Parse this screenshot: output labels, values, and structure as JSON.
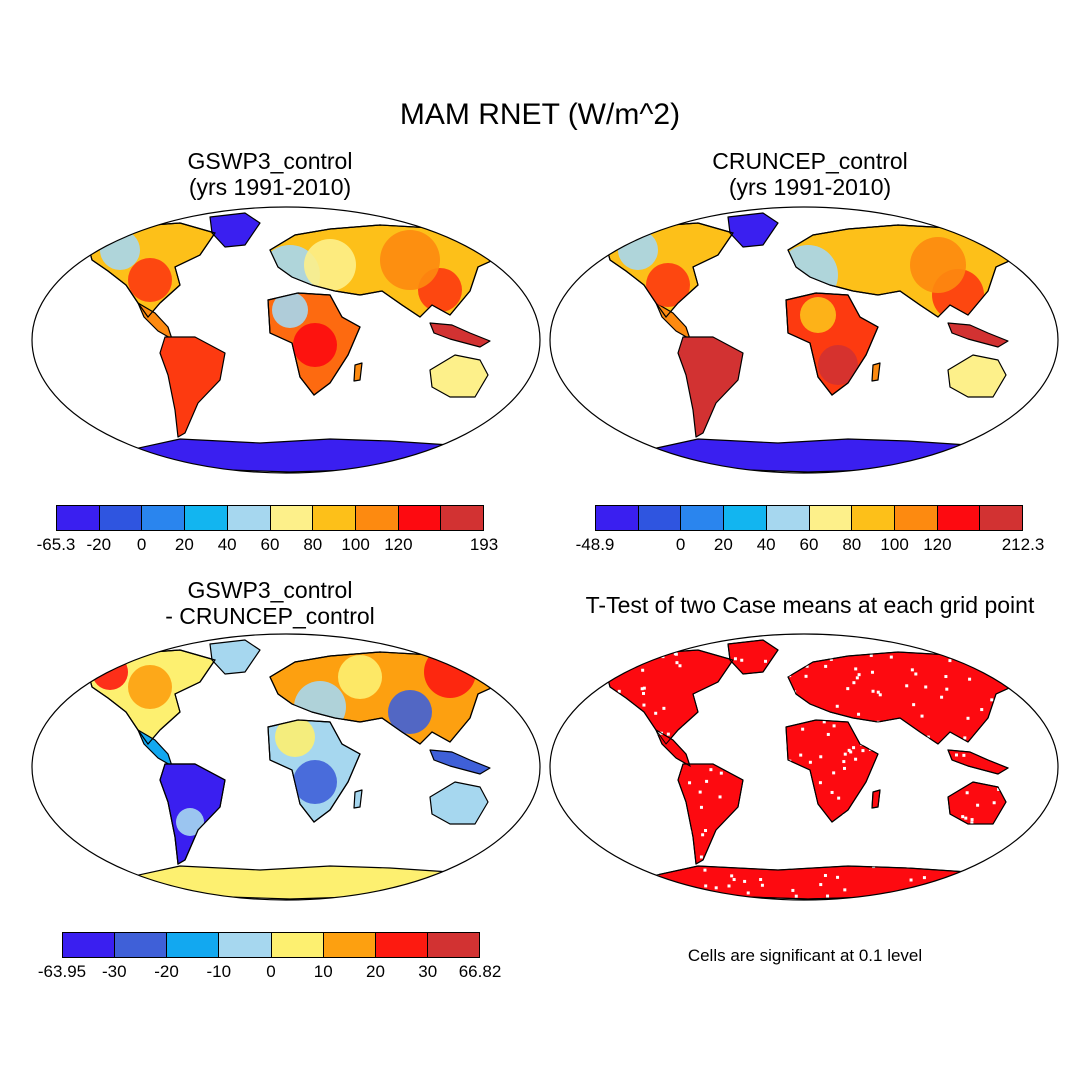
{
  "main_title": "MAM RNET (W/m^2)",
  "panels": [
    {
      "id": "p1",
      "title_line1": "GSWP3_control",
      "title_line2": "(yrs 1991-2010)",
      "field": "abs"
    },
    {
      "id": "p2",
      "title_line1": "CRUNCEP_control",
      "title_line2": "(yrs 1991-2010)",
      "field": "abs2"
    },
    {
      "id": "p3",
      "title_line1": "GSWP3_control",
      "title_line2": "- CRUNCEP_control",
      "field": "diff"
    },
    {
      "id": "p4",
      "title_line1": "T-Test of two Case means at each grid point",
      "title_line2": "",
      "field": "sig"
    }
  ],
  "ttest_note": "Cells are significant at 0.1 level",
  "colorbars": [
    {
      "id": "cbar1",
      "colors": [
        "#3a1ff0",
        "#2f55e0",
        "#2a85ee",
        "#12b5f0",
        "#a6d7ef",
        "#fdf08a",
        "#fdc019",
        "#fd8a10",
        "#fd0a10",
        "#d23232"
      ],
      "labels": [
        "-65.3",
        "-20",
        "0",
        "20",
        "40",
        "60",
        "80",
        "100",
        "120",
        "",
        "193"
      ]
    },
    {
      "id": "cbar2",
      "colors": [
        "#3a1ff0",
        "#2f55e0",
        "#2a85ee",
        "#12b5f0",
        "#a6d7ef",
        "#fdf08a",
        "#fdc019",
        "#fd8a10",
        "#fd0a10",
        "#d23232"
      ],
      "labels": [
        "-48.9",
        "",
        "0",
        "20",
        "40",
        "60",
        "80",
        "100",
        "120",
        "",
        "212.3"
      ]
    },
    {
      "id": "cbar3",
      "colors": [
        "#3a1ff0",
        "#3f60d8",
        "#12a8f0",
        "#a6d7ef",
        "#fdf070",
        "#fda010",
        "#fd1a10",
        "#d23232"
      ],
      "labels": [
        "-63.95",
        "-30",
        "-20",
        "-10",
        "0",
        "10",
        "20",
        "30",
        "66.82"
      ]
    }
  ]
}
